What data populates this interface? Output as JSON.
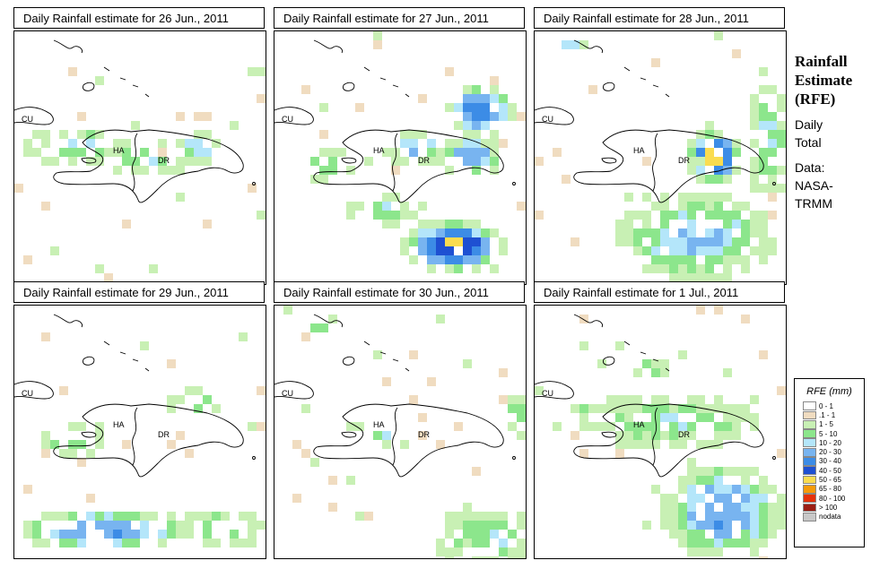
{
  "panels": [
    {
      "title": "Daily Rainfall estimate for  26 Jun., 2011"
    },
    {
      "title": "Daily Rainfall estimate for  27 Jun., 2011"
    },
    {
      "title": "Daily Rainfall estimate for  28 Jun., 2011"
    },
    {
      "title": "Daily Rainfall estimate for  29 Jun., 2011"
    },
    {
      "title": "Daily Rainfall estimate for  30 Jun., 2011"
    },
    {
      "title": "Daily Rainfall estimate for  1 Jul., 2011"
    }
  ],
  "places": {
    "cu": "CU",
    "ha": "HA",
    "dr": "DR"
  },
  "sidebar": {
    "title_line1": "Rainfall",
    "title_line2": "Estimate",
    "title_line3": "(RFE)",
    "line_daily": "Daily",
    "line_total": "Total",
    "line_data": "Data:",
    "line_nasa": "NASA-",
    "line_trmm": "TRMM"
  },
  "legend": {
    "title": "RFE (mm)",
    "items": [
      {
        "label": "0 - 1",
        "color": "#ffffff"
      },
      {
        "label": ".1 - 1",
        "color": "#f0dcc0"
      },
      {
        "label": "1 - 5",
        "color": "#c8f0b4"
      },
      {
        "label": "5 - 10",
        "color": "#8ce68c"
      },
      {
        "label": "10 - 20",
        "color": "#b4e6fa"
      },
      {
        "label": "20 - 30",
        "color": "#78b4f0"
      },
      {
        "label": "30 - 40",
        "color": "#3c8ce6"
      },
      {
        "label": "40 - 50",
        "color": "#1e50d2"
      },
      {
        "label": "50 - 65",
        "color": "#fadc50"
      },
      {
        "label": "65 - 80",
        "color": "#f59b0a"
      },
      {
        "label": "80 - 100",
        "color": "#e6320a"
      },
      {
        "label": "> 100",
        "color": "#9b1e14"
      },
      {
        "label": "nodata",
        "color": "#c8c8c8"
      }
    ]
  }
}
